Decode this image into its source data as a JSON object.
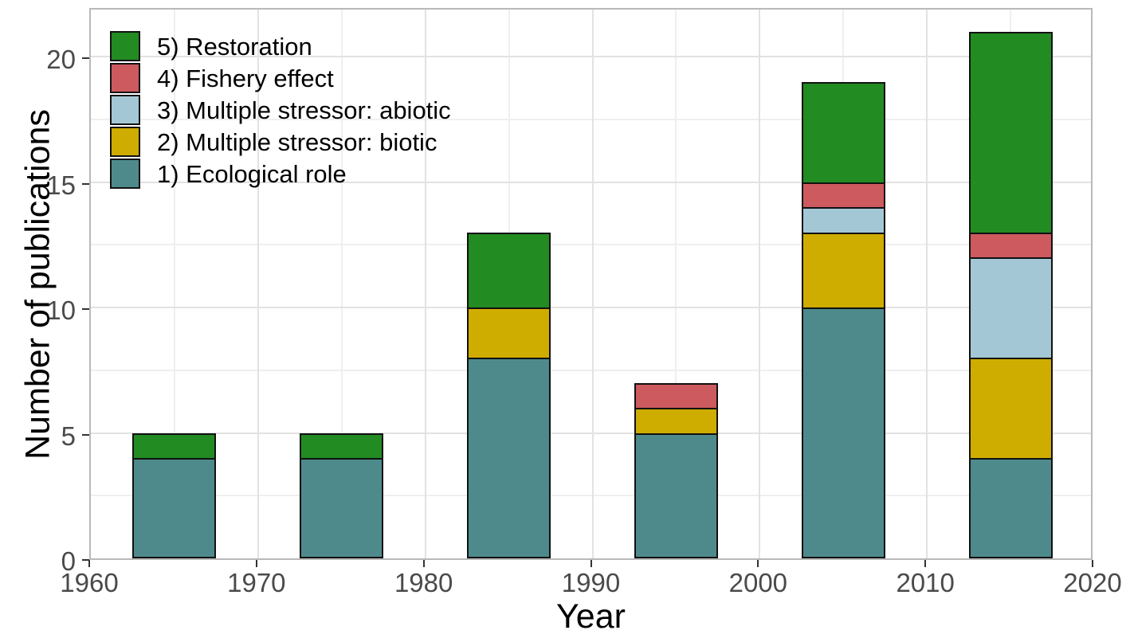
{
  "chart_data": {
    "type": "bar",
    "stacked": true,
    "xlabel": "Year",
    "ylabel": "Number of publications",
    "categories": [
      1965,
      1975,
      1985,
      1995,
      2005,
      2015
    ],
    "bar_width_years": 5,
    "series": [
      {
        "name": "1) Ecological role",
        "color": "#4e8a8b",
        "values": [
          4,
          4,
          8,
          5,
          10,
          4
        ]
      },
      {
        "name": "2) Multiple stressor: biotic",
        "color": "#cfac00",
        "values": [
          0,
          0,
          2,
          1,
          3,
          4
        ]
      },
      {
        "name": "3) Multiple stressor: abiotic",
        "color": "#a3c7d5",
        "values": [
          0,
          0,
          0,
          0,
          1,
          4
        ]
      },
      {
        "name": "4) Fishery effect",
        "color": "#cc5a5f",
        "values": [
          0,
          0,
          0,
          1,
          1,
          1
        ]
      },
      {
        "name": "5) Restoration",
        "color": "#228b22",
        "values": [
          1,
          1,
          3,
          0,
          4,
          8
        ]
      }
    ],
    "totals": [
      5,
      5,
      13,
      7,
      19,
      21
    ],
    "xlim": [
      1960,
      2020
    ],
    "ylim": [
      0,
      22
    ],
    "x_ticks": [
      1960,
      1970,
      1980,
      1990,
      2000,
      2010,
      2020
    ],
    "y_ticks": [
      0,
      5,
      10,
      15,
      20
    ],
    "x_minor": [
      1965,
      1975,
      1985,
      1995,
      2005,
      2015
    ],
    "y_minor": [
      2.5,
      7.5,
      12.5,
      17.5
    ],
    "grid": true,
    "legend_position": "top-left-inside",
    "legend_order_top_to_bottom": [
      "5) Restoration",
      "4) Fishery effect",
      "3) Multiple stressor: abiotic",
      "2) Multiple stressor: biotic",
      "1) Ecological role"
    ]
  },
  "colors": {
    "background": "#ffffff",
    "panel_border": "#b9b9b9",
    "grid_major": "#e2e2e2",
    "grid_minor": "#efefef",
    "axis_tick": "#333333",
    "tick_label": "#4a4a4a",
    "axis_title": "#000000",
    "bar_outline": "#111111"
  }
}
